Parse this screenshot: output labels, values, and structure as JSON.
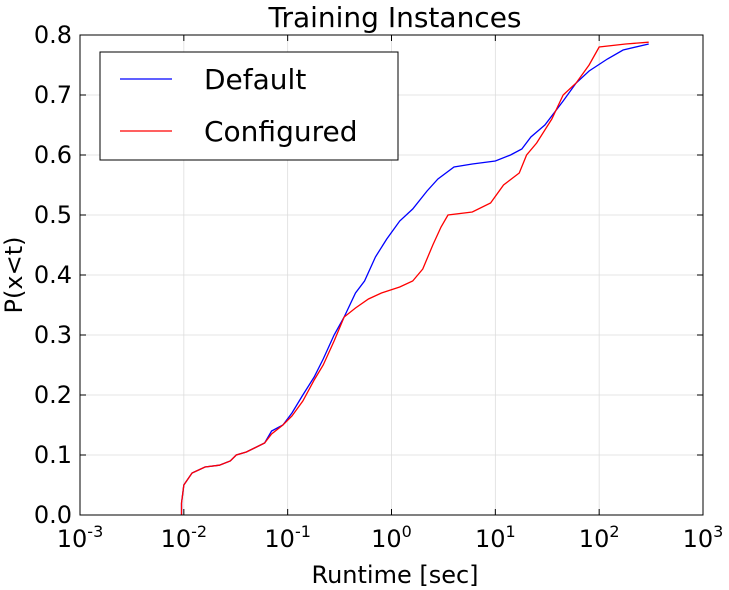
{
  "chart_data": {
    "type": "line",
    "title": "Training Instances",
    "xlabel": "Runtime [sec]",
    "ylabel": "P(x<t)",
    "xscale": "log",
    "xlim": [
      0.001,
      1000
    ],
    "xticks": [
      {
        "value": 0.001,
        "label": "10",
        "exponent": "-3"
      },
      {
        "value": 0.01,
        "label": "10",
        "exponent": "-2"
      },
      {
        "value": 0.1,
        "label": "10",
        "exponent": "-1"
      },
      {
        "value": 1,
        "label": "10",
        "exponent": "0"
      },
      {
        "value": 10,
        "label": "10",
        "exponent": "1"
      },
      {
        "value": 100,
        "label": "10",
        "exponent": "2"
      },
      {
        "value": 1000,
        "label": "10",
        "exponent": "3"
      }
    ],
    "ylim": [
      0,
      0.8
    ],
    "yticks": [
      {
        "value": 0,
        "label": "0.0"
      },
      0.1,
      0.2,
      0.3,
      0.4,
      0.5,
      0.6,
      0.7,
      0.8
    ],
    "grid": true,
    "legend": "upper left",
    "series": [
      {
        "name": "Default",
        "color": "#0000ff",
        "x": [
          0.0095,
          0.0095,
          0.01,
          0.012,
          0.016,
          0.022,
          0.028,
          0.032,
          0.04,
          0.06,
          0.07,
          0.09,
          0.11,
          0.14,
          0.18,
          0.22,
          0.28,
          0.35,
          0.45,
          0.55,
          0.7,
          0.9,
          1.2,
          1.6,
          2.2,
          2.8,
          4,
          6,
          10,
          14,
          18,
          22,
          30,
          45,
          60,
          80,
          120,
          170,
          300
        ],
        "values": [
          0,
          0.02,
          0.05,
          0.07,
          0.08,
          0.083,
          0.09,
          0.1,
          0.105,
          0.12,
          0.14,
          0.15,
          0.17,
          0.2,
          0.23,
          0.26,
          0.3,
          0.33,
          0.37,
          0.39,
          0.43,
          0.46,
          0.49,
          0.51,
          0.54,
          0.56,
          0.58,
          0.585,
          0.59,
          0.6,
          0.61,
          0.63,
          0.65,
          0.69,
          0.72,
          0.74,
          0.76,
          0.775,
          0.785
        ]
      },
      {
        "name": "Configured",
        "color": "#ff0000",
        "x": [
          0.0095,
          0.0095,
          0.01,
          0.012,
          0.016,
          0.022,
          0.028,
          0.032,
          0.04,
          0.06,
          0.07,
          0.09,
          0.11,
          0.14,
          0.18,
          0.22,
          0.28,
          0.35,
          0.45,
          0.6,
          0.8,
          1.2,
          1.6,
          2,
          2.5,
          3,
          3.5,
          6,
          9,
          12,
          17,
          20,
          25,
          35,
          45,
          60,
          80,
          100,
          180,
          300
        ],
        "values": [
          0,
          0.02,
          0.05,
          0.07,
          0.08,
          0.083,
          0.09,
          0.1,
          0.105,
          0.12,
          0.135,
          0.15,
          0.165,
          0.19,
          0.225,
          0.25,
          0.29,
          0.33,
          0.345,
          0.36,
          0.37,
          0.38,
          0.39,
          0.41,
          0.45,
          0.48,
          0.5,
          0.505,
          0.52,
          0.55,
          0.57,
          0.6,
          0.62,
          0.66,
          0.7,
          0.72,
          0.75,
          0.78,
          0.785,
          0.788
        ]
      }
    ]
  }
}
